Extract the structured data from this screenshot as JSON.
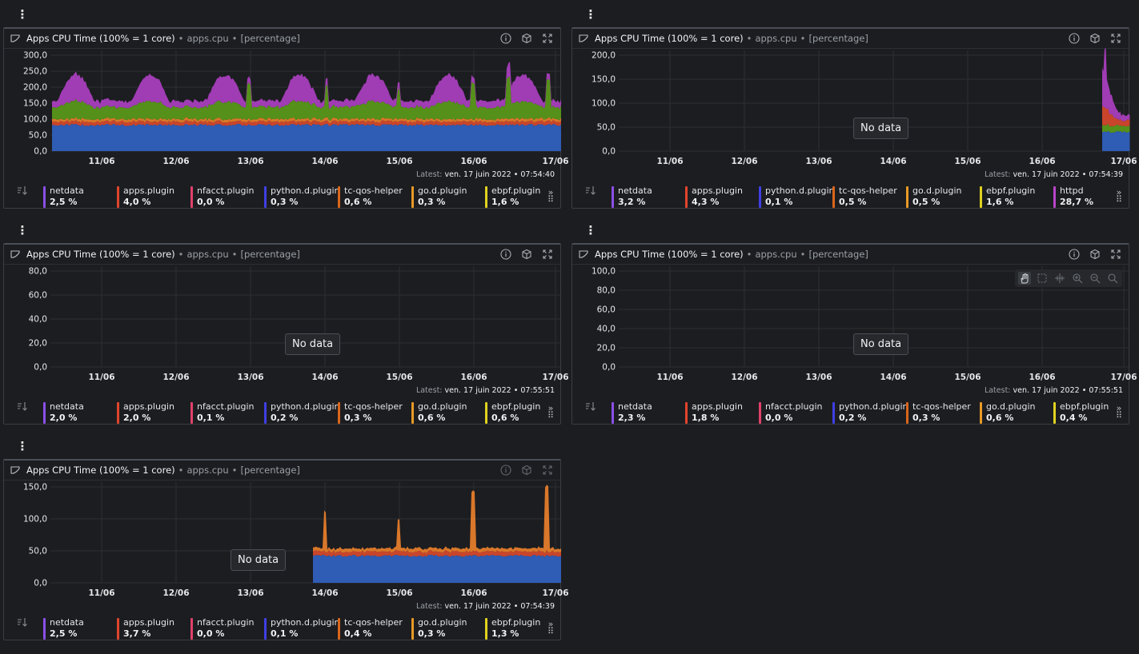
{
  "header_title": "Apps CPU Time (100% = 1 core)",
  "header_context": "apps.cpu",
  "header_units": "[percentage]",
  "sep": "•",
  "menu_glyph": "⋮",
  "latest_label": "Latest:",
  "no_data": "No data",
  "xticks": [
    "11/06",
    "12/06",
    "13/06",
    "14/06",
    "15/06",
    "16/06",
    "17/06"
  ],
  "colors": {
    "netdata": "#8a4fe8",
    "apps_plugin": "#e0452c",
    "nfacct_plugin": "#e0416a",
    "python_d_plugin": "#3f3fe4",
    "tc_qos_helper": "#d9661a",
    "go_d_plugin": "#e89a26",
    "ebpf_plugin": "#e0d220",
    "httpd": "#b845c8",
    "area_blue": "#2f5cb4",
    "area_red": "#c8452c",
    "area_orange": "#d9772a",
    "area_green": "#55901a",
    "area_purple": "#a03cb4",
    "grid": "#2c2f33",
    "axis_text": "#e4e6e8"
  },
  "icons": {
    "chart": "chart-leaf-icon",
    "info": "info-icon",
    "settings": "cube-settings-icon",
    "fullscreen": "expand-icon",
    "sort": "sort-icon",
    "more": "chevron-double-right-icon",
    "drag": "drag-handle-icon",
    "pan": "hand-icon",
    "select": "select-area-icon",
    "highlight": "highlight-icon",
    "zoom_in": "zoom-in-icon",
    "zoom_out": "zoom-out-icon",
    "reset": "zoom-reset-icon"
  },
  "cards": [
    {
      "latest": "ven. 17 juin 2022 • 07:54:40",
      "yticks": [
        "300,0",
        "250,0",
        "200,0",
        "150,0",
        "100,0",
        "50,0",
        "0,0"
      ],
      "show_no_data": false,
      "dims": [
        {
          "name": "netdata",
          "value": "2,5 %"
        },
        {
          "name": "apps.plugin",
          "value": "4,0 %"
        },
        {
          "name": "nfacct.plugin",
          "value": "0,0 %"
        },
        {
          "name": "python.d.plugin",
          "value": "0,3 %"
        },
        {
          "name": "tc-qos-helper",
          "value": "0,6 %"
        },
        {
          "name": "go.d.plugin",
          "value": "0,3 %"
        },
        {
          "name": "ebpf.plugin",
          "value": "1,6 %"
        }
      ]
    },
    {
      "latest": "ven. 17 juin 2022 • 07:54:39",
      "yticks": [
        "200,0",
        "150,0",
        "100,0",
        "50,0",
        "0,0"
      ],
      "show_no_data": true,
      "dims": [
        {
          "name": "netdata",
          "value": "3,2 %"
        },
        {
          "name": "apps.plugin",
          "value": "4,3 %"
        },
        {
          "name": "python.d.plugin",
          "value": "0,1 %"
        },
        {
          "name": "tc-qos-helper",
          "value": "0,5 %"
        },
        {
          "name": "go.d.plugin",
          "value": "0,5 %"
        },
        {
          "name": "ebpf.plugin",
          "value": "1,6 %"
        },
        {
          "name": "httpd",
          "value": "28,7 %"
        }
      ]
    },
    {
      "latest": "ven. 17 juin 2022 • 07:55:51",
      "yticks": [
        "80,0",
        "60,0",
        "40,0",
        "20,0",
        "0,0"
      ],
      "show_no_data": true,
      "dims": [
        {
          "name": "netdata",
          "value": "2,0 %"
        },
        {
          "name": "apps.plugin",
          "value": "2,0 %"
        },
        {
          "name": "nfacct.plugin",
          "value": "0,1 %"
        },
        {
          "name": "python.d.plugin",
          "value": "0,2 %"
        },
        {
          "name": "tc-qos-helper",
          "value": "0,3 %"
        },
        {
          "name": "go.d.plugin",
          "value": "0,6 %"
        },
        {
          "name": "ebpf.plugin",
          "value": "0,6 %"
        }
      ]
    },
    {
      "latest": "ven. 17 juin 2022 • 07:55:51",
      "yticks": [
        "100,0",
        "80,0",
        "60,0",
        "40,0",
        "20,0",
        "0,0"
      ],
      "show_no_data": true,
      "dims": [
        {
          "name": "netdata",
          "value": "2,3 %"
        },
        {
          "name": "apps.plugin",
          "value": "1,8 %"
        },
        {
          "name": "nfacct.plugin",
          "value": "0,0 %"
        },
        {
          "name": "python.d.plugin",
          "value": "0,2 %"
        },
        {
          "name": "tc-qos-helper",
          "value": "0,3 %"
        },
        {
          "name": "go.d.plugin",
          "value": "0,6 %"
        },
        {
          "name": "ebpf.plugin",
          "value": "0,4 %"
        }
      ]
    },
    {
      "latest": "ven. 17 juin 2022 • 07:54:39",
      "yticks": [
        "150,0",
        "100,0",
        "50,0",
        "0,0"
      ],
      "show_no_data": true,
      "dims": [
        {
          "name": "netdata",
          "value": "2,5 %"
        },
        {
          "name": "apps.plugin",
          "value": "3,7 %"
        },
        {
          "name": "nfacct.plugin",
          "value": "0,0 %"
        },
        {
          "name": "python.d.plugin",
          "value": "0,1 %"
        },
        {
          "name": "tc-qos-helper",
          "value": "0,4 %"
        },
        {
          "name": "go.d.plugin",
          "value": "0,3 %"
        },
        {
          "name": "ebpf.plugin",
          "value": "1,3 %"
        }
      ]
    }
  ]
}
